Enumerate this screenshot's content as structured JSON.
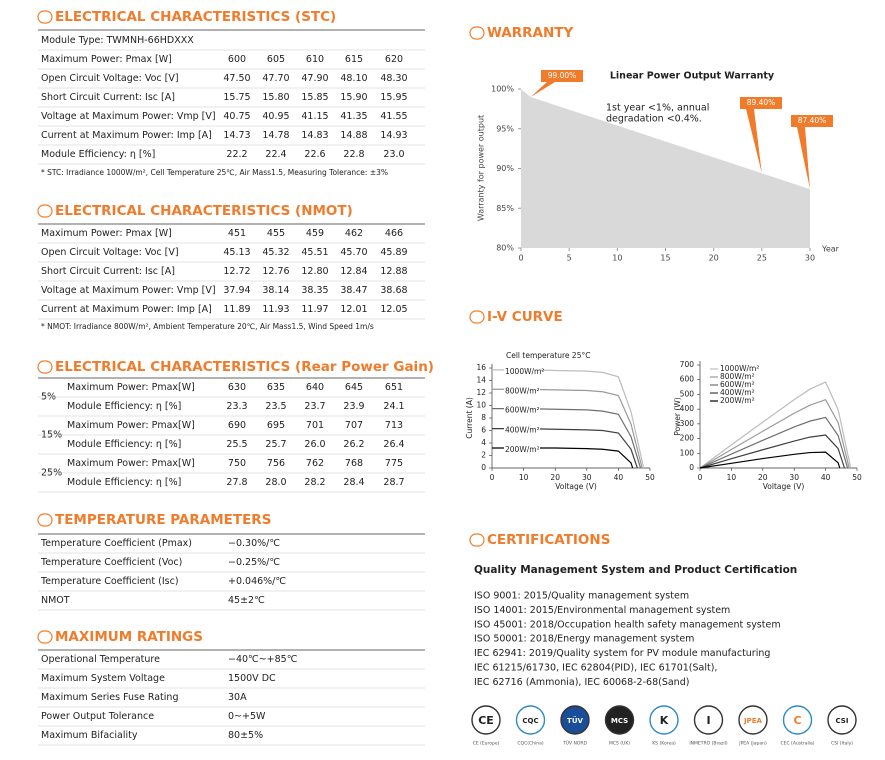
{
  "stc": {
    "title": "ELECTRICAL CHARACTERISTICS (STC)",
    "module_type": "Module Type: TWMNH-66HDXXX",
    "rows": [
      [
        "Maximum Power: Pmax [W]",
        "600",
        "605",
        "610",
        "615",
        "620"
      ],
      [
        "Open Circuit Voltage: Voc [V]",
        "47.50",
        "47.70",
        "47.90",
        "48.10",
        "48.30"
      ],
      [
        "Short Circuit Current: Isc [A]",
        "15.75",
        "15.80",
        "15.85",
        "15.90",
        "15.95"
      ],
      [
        "Voltage at Maximum Power: Vmp [V]",
        "40.75",
        "40.95",
        "41.15",
        "41.35",
        "41.55"
      ],
      [
        "Current at Maximum Power: Imp [A]",
        "14.73",
        "14.78",
        "14.83",
        "14.88",
        "14.93"
      ],
      [
        "Module Efficiency: η [%]",
        "22.2",
        "22.4",
        "22.6",
        "22.8",
        "23.0"
      ]
    ],
    "note": "* STC: Irradiance 1000W/m², Cell Temperature 25℃, Air Mass1.5, Measuring Tolerance: ±3%"
  },
  "nmot": {
    "title": "ELECTRICAL CHARACTERISTICS (NMOT)",
    "rows": [
      [
        "Maximum Power: Pmax [W]",
        "451",
        "455",
        "459",
        "462",
        "466"
      ],
      [
        "Open Circuit Voltage: Voc [V]",
        "45.13",
        "45.32",
        "45.51",
        "45.70",
        "45.89"
      ],
      [
        "Short Circuit Current: Isc [A]",
        "12.72",
        "12.76",
        "12.80",
        "12.84",
        "12.88"
      ],
      [
        "Voltage at Maximum Power: Vmp [V]",
        "37.94",
        "38.14",
        "38.35",
        "38.47",
        "38.68"
      ],
      [
        "Current at Maximum Power: Imp [A]",
        "11.89",
        "11.93",
        "11.97",
        "12.01",
        "12.05"
      ]
    ],
    "note": "* NMOT: Irradiance 800W/m², Ambient Temperature 20℃, Air Mass1.5, Wind Speed 1m/s"
  },
  "rear": {
    "title": "ELECTRICAL CHARACTERISTICS (Rear Power Gain)",
    "groups": [
      {
        "gain": "5%",
        "rows": [
          [
            "Maximum Power: Pmax[W]",
            "630",
            "635",
            "640",
            "645",
            "651"
          ],
          [
            "Module Efficiency: η [%]",
            "23.3",
            "23.5",
            "23.7",
            "23.9",
            "24.1"
          ]
        ]
      },
      {
        "gain": "15%",
        "rows": [
          [
            "Maximum Power: Pmax[W]",
            "690",
            "695",
            "701",
            "707",
            "713"
          ],
          [
            "Module Efficiency: η [%]",
            "25.5",
            "25.7",
            "26.0",
            "26.2",
            "26.4"
          ]
        ]
      },
      {
        "gain": "25%",
        "rows": [
          [
            "Maximum Power: Pmax[W]",
            "750",
            "756",
            "762",
            "768",
            "775"
          ],
          [
            "Module Efficiency: η [%]",
            "27.8",
            "28.0",
            "28.2",
            "28.4",
            "28.7"
          ]
        ]
      }
    ]
  },
  "temperature": {
    "title": "TEMPERATURE PARAMETERS",
    "rows": [
      [
        "Temperature Coefficient (Pmax)",
        "−0.30%/℃"
      ],
      [
        "Temperature Coefficient (Voc)",
        "−0.25%/℃"
      ],
      [
        "Temperature Coefficient (Isc)",
        "+0.046%/℃"
      ],
      [
        "NMOT",
        "45±2℃"
      ]
    ]
  },
  "maximum": {
    "title": "MAXIMUM RATINGS",
    "rows": [
      [
        "Operational Temperature",
        "−40℃~+85℃"
      ],
      [
        "Maximum System Voltage",
        "1500V DC"
      ],
      [
        "Maximum Series Fuse Rating",
        "30A"
      ],
      [
        "Power Output Tolerance",
        "0~+5W"
      ],
      [
        "Maximum Bifaciality",
        "80±5%"
      ]
    ]
  },
  "warranty": {
    "title": "WARRANTY",
    "chart": {
      "type": "area",
      "title": "Linear Power Output Warranty",
      "annotation": [
        "1st year <1%, annual",
        "degradation <0.4%."
      ],
      "ylabel": "Warranty for power output",
      "xlabel": "Year",
      "x": [
        0,
        1,
        25,
        30
      ],
      "values": [
        100,
        99,
        89.4,
        87.4
      ],
      "value_labels": [
        null,
        "99.00%",
        "89.40%",
        "87.40%"
      ],
      "color": "#d9d9d9",
      "label_color": "#f07c2b",
      "xlim": [
        0,
        30
      ],
      "ylim": [
        80,
        100
      ],
      "xticks": [
        0,
        5,
        10,
        15,
        20,
        25,
        30
      ],
      "yticks": [
        {
          "value": 80,
          "label": "80%"
        },
        {
          "value": 85,
          "label": "85%"
        },
        {
          "value": 90,
          "label": "90%"
        },
        {
          "value": 95,
          "label": "95%"
        },
        {
          "value": 100,
          "label": "100%"
        }
      ]
    }
  },
  "iv": {
    "title": "I-V CURVE",
    "charts": [
      {
        "type": "line",
        "annotation": "Cell temperature 25°C",
        "ylabel": "Current (A)",
        "xlabel": "Voltage (V)",
        "xlim": [
          0,
          50
        ],
        "ylim": [
          0,
          16
        ],
        "xticks": [
          0,
          10,
          20,
          30,
          40,
          50
        ],
        "yticks": [
          0,
          2,
          4,
          6,
          8,
          10,
          12,
          14,
          16
        ],
        "series": [
          {
            "name": "1000W/m²",
            "color": "#bdbdbd",
            "x": [
              0,
              10,
              20,
              30,
              35,
              40,
              44,
              48
            ],
            "values": [
              15.7,
              15.7,
              15.6,
              15.5,
              15.3,
              14.6,
              9.0,
              0
            ]
          },
          {
            "name": "800W/m²",
            "color": "#9a9a9a",
            "x": [
              0,
              10,
              20,
              30,
              35,
              40,
              44,
              47.5
            ],
            "values": [
              12.6,
              12.6,
              12.5,
              12.4,
              12.2,
              11.6,
              7.0,
              0
            ]
          },
          {
            "name": "600W/m²",
            "color": "#6f6f6f",
            "x": [
              0,
              10,
              20,
              30,
              35,
              40,
              44,
              47
            ],
            "values": [
              9.5,
              9.5,
              9.4,
              9.3,
              9.1,
              8.6,
              5.0,
              0
            ]
          },
          {
            "name": "400W/m²",
            "color": "#3f3f3f",
            "x": [
              0,
              10,
              20,
              30,
              35,
              40,
              44,
              46
            ],
            "values": [
              6.3,
              6.3,
              6.2,
              6.1,
              6.0,
              5.6,
              3.0,
              0
            ]
          },
          {
            "name": "200W/m²",
            "color": "#000000",
            "x": [
              0,
              10,
              20,
              30,
              35,
              40,
              44,
              44.5
            ],
            "values": [
              3.2,
              3.2,
              3.2,
              3.1,
              3.0,
              2.7,
              0.8,
              0
            ]
          }
        ]
      },
      {
        "type": "line",
        "ylabel": "Power (W)",
        "xlabel": "Voltage (V)",
        "xlim": [
          0,
          50
        ],
        "ylim": [
          0,
          700
        ],
        "xticks": [
          0,
          10,
          20,
          30,
          40,
          50
        ],
        "yticks": [
          0,
          100,
          200,
          300,
          400,
          500,
          600,
          700
        ],
        "series": [
          {
            "name": "1000W/m²",
            "color": "#bdbdbd",
            "x": [
              0,
              10,
              20,
              30,
              35,
              40,
              44,
              48
            ],
            "values": [
              0,
              157,
              312,
              465,
              535.5,
              584,
              396,
              0
            ]
          },
          {
            "name": "800W/m²",
            "color": "#9a9a9a",
            "x": [
              0,
              10,
              20,
              30,
              35,
              40,
              44,
              47.5
            ],
            "values": [
              0,
              126,
              250,
              372,
              427,
              464,
              308,
              0
            ]
          },
          {
            "name": "600W/m²",
            "color": "#6f6f6f",
            "x": [
              0,
              10,
              20,
              30,
              35,
              40,
              44,
              47
            ],
            "values": [
              0,
              95,
              188,
              279,
              318.5,
              344,
              220,
              0
            ]
          },
          {
            "name": "400W/m²",
            "color": "#3f3f3f",
            "x": [
              0,
              10,
              20,
              30,
              35,
              40,
              44,
              46
            ],
            "values": [
              0,
              63,
              124,
              183,
              210,
              224,
              132,
              0
            ]
          },
          {
            "name": "200W/m²",
            "color": "#000000",
            "x": [
              0,
              10,
              20,
              30,
              35,
              40,
              44,
              44.5
            ],
            "values": [
              0,
              32,
              64,
              93,
              105,
              108,
              35.2,
              0
            ]
          }
        ]
      }
    ]
  },
  "certifications": {
    "title": "CERTIFICATIONS",
    "subtitle": "Quality Management System and Product Certification",
    "lines": [
      "ISO 9001: 2015/Quality management system",
      "ISO 14001: 2015/Environmental management system",
      "ISO 45001: 2018/Occupation health safety management system",
      "ISO 50001: 2018/Energy management system",
      "IEC 62941: 2019/Quality system for PV module manufacturing",
      "IEC 61215/61730, IEC 62804(PID), IEC 61701(Salt),",
      "IEC 62716 (Ammonia), IEC 60068-2-68(Sand)"
    ],
    "logos": [
      {
        "mark": "CE",
        "caption": "CE (Europe)"
      },
      {
        "mark": "CQC",
        "caption": "CQC(China)"
      },
      {
        "mark": "TÜV",
        "caption": "TÜV NORD"
      },
      {
        "mark": "MCS",
        "caption": "MCS (UK)"
      },
      {
        "mark": "K",
        "caption": "KS (Korea)"
      },
      {
        "mark": "I",
        "caption": "INMETRO (Brazil)"
      },
      {
        "mark": "JPEA",
        "caption": "JPEA (Japan)"
      },
      {
        "mark": "C",
        "caption": "CEC (Australia)"
      },
      {
        "mark": "CSI",
        "caption": "CSI (Italy)"
      }
    ]
  }
}
